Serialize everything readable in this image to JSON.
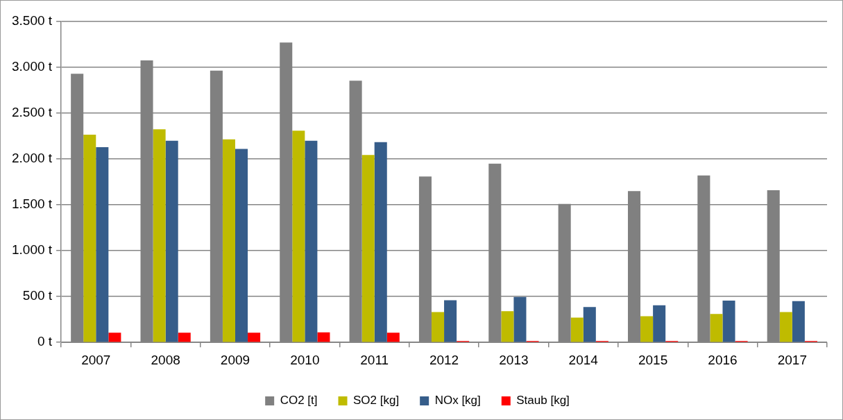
{
  "chart_data": {
    "type": "bar",
    "categories": [
      "2007",
      "2008",
      "2009",
      "2010",
      "2011",
      "2012",
      "2013",
      "2014",
      "2015",
      "2016",
      "2017"
    ],
    "series": [
      {
        "name": "CO2 [t]",
        "color": "#808080",
        "values": [
          2930,
          3075,
          2965,
          3270,
          2855,
          1810,
          1950,
          1510,
          1650,
          1820,
          1660
        ]
      },
      {
        "name": "SO2 [kg]",
        "color": "#bfbb00",
        "values": [
          2265,
          2325,
          2215,
          2310,
          2045,
          330,
          340,
          270,
          285,
          310,
          330
        ]
      },
      {
        "name": "NOx [kg]",
        "color": "#365d8a",
        "values": [
          2130,
          2200,
          2110,
          2200,
          2185,
          460,
          495,
          385,
          405,
          455,
          450
        ]
      },
      {
        "name": "Staub [kg]",
        "color": "#ff0000",
        "values": [
          105,
          105,
          105,
          110,
          105,
          15,
          15,
          15,
          15,
          15,
          15
        ]
      }
    ],
    "ylim": [
      0,
      3500
    ],
    "yticks": [
      {
        "value": 0,
        "label": "0 t"
      },
      {
        "value": 500,
        "label": "500 t"
      },
      {
        "value": 1000,
        "label": "1.000 t"
      },
      {
        "value": 1500,
        "label": "1.500 t"
      },
      {
        "value": 2000,
        "label": "2.000 t"
      },
      {
        "value": 2500,
        "label": "2.500 t"
      },
      {
        "value": 3000,
        "label": "3.000 t"
      },
      {
        "value": 3500,
        "label": "3.500 t"
      }
    ],
    "grid": "y",
    "legend": "bottom"
  }
}
